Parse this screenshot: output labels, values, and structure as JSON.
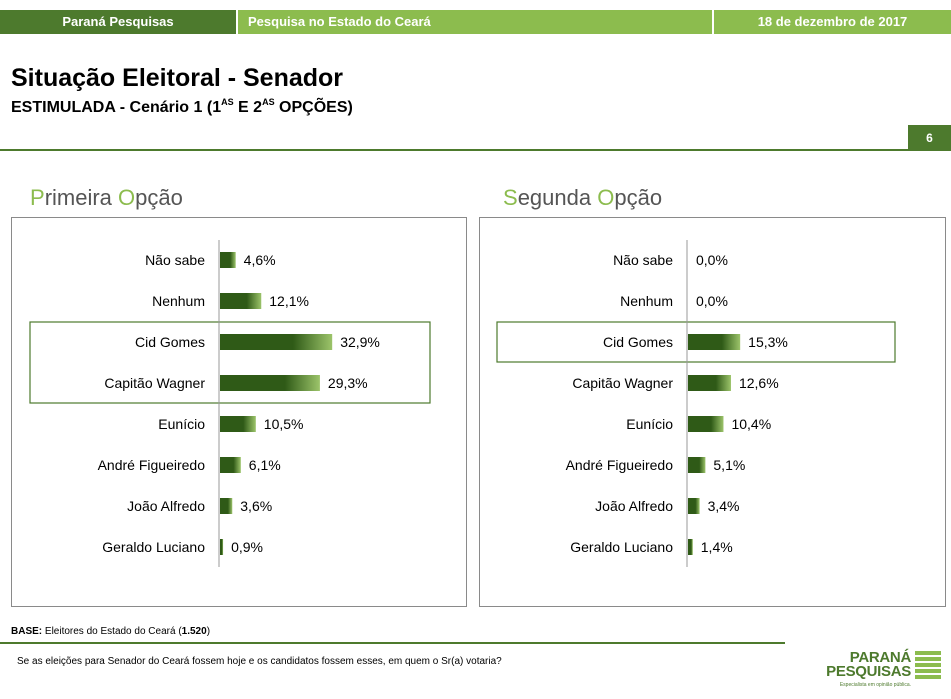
{
  "header": {
    "org": "Paraná Pesquisas",
    "survey": "Pesquisa no Estado do Ceará",
    "date": "18 de dezembro de 2017"
  },
  "title": "Situação Eleitoral - Senador",
  "subtitle": {
    "prefix": "ESTIMULADA - Cenário 1 (1",
    "sup1": "AS",
    "middle": " E 2",
    "sup2": "AS",
    "suffix": " OPÇÕES)"
  },
  "page_number": "6",
  "panels": {
    "left_title": {
      "a1": "P",
      "a2": "rimeira ",
      "a3": "O",
      "a4": "pção"
    },
    "right_title": {
      "a1": "S",
      "a2": "egunda ",
      "a3": "O",
      "a4": "pção"
    }
  },
  "chart_data": [
    {
      "type": "bar",
      "orientation": "horizontal",
      "title": "Primeira Opção",
      "categories": [
        "Não sabe",
        "Nenhum",
        "Cid Gomes",
        "Capitão Wagner",
        "Eunício",
        "André Figueiredo",
        "João Alfredo",
        "Geraldo Luciano"
      ],
      "values": [
        4.6,
        12.1,
        32.9,
        29.3,
        10.5,
        6.1,
        3.6,
        0.9
      ],
      "labels": [
        "4,6%",
        "12,1%",
        "32,9%",
        "29,3%",
        "10,5%",
        "6,1%",
        "3,6%",
        "0,9%"
      ],
      "highlighted": [
        "Cid Gomes",
        "Capitão Wagner"
      ],
      "unit": "%"
    },
    {
      "type": "bar",
      "orientation": "horizontal",
      "title": "Segunda Opção",
      "categories": [
        "Não sabe",
        "Nenhum",
        "Cid Gomes",
        "Capitão Wagner",
        "Eunício",
        "André Figueiredo",
        "João Alfredo",
        "Geraldo Luciano"
      ],
      "values": [
        0.0,
        0.0,
        15.3,
        12.6,
        10.4,
        5.1,
        3.4,
        1.4
      ],
      "labels": [
        "0,0%",
        "0,0%",
        "15,3%",
        "12,6%",
        "10,4%",
        "5,1%",
        "3,4%",
        "1,4%"
      ],
      "highlighted": [
        "Cid Gomes"
      ],
      "unit": "%"
    }
  ],
  "footer": {
    "base_label": "BASE:",
    "base_text": " Eleitores do Estado do Ceará (",
    "base_n": "1.520",
    "base_close": ")",
    "question": "Se as eleições para Senador do Ceará fossem hoje e os candidatos fossem esses, em quem o Sr(a) votaria?"
  },
  "logo": {
    "line1": "PARANÁ",
    "line2": "PESQUISAS",
    "tagline": "Especialista em opinião pública."
  },
  "colors": {
    "dark_green": "#4d7a2d",
    "light_green": "#8cbc4e",
    "bar_dark": "#2f5a17",
    "bar_light": "#9cc46a"
  }
}
